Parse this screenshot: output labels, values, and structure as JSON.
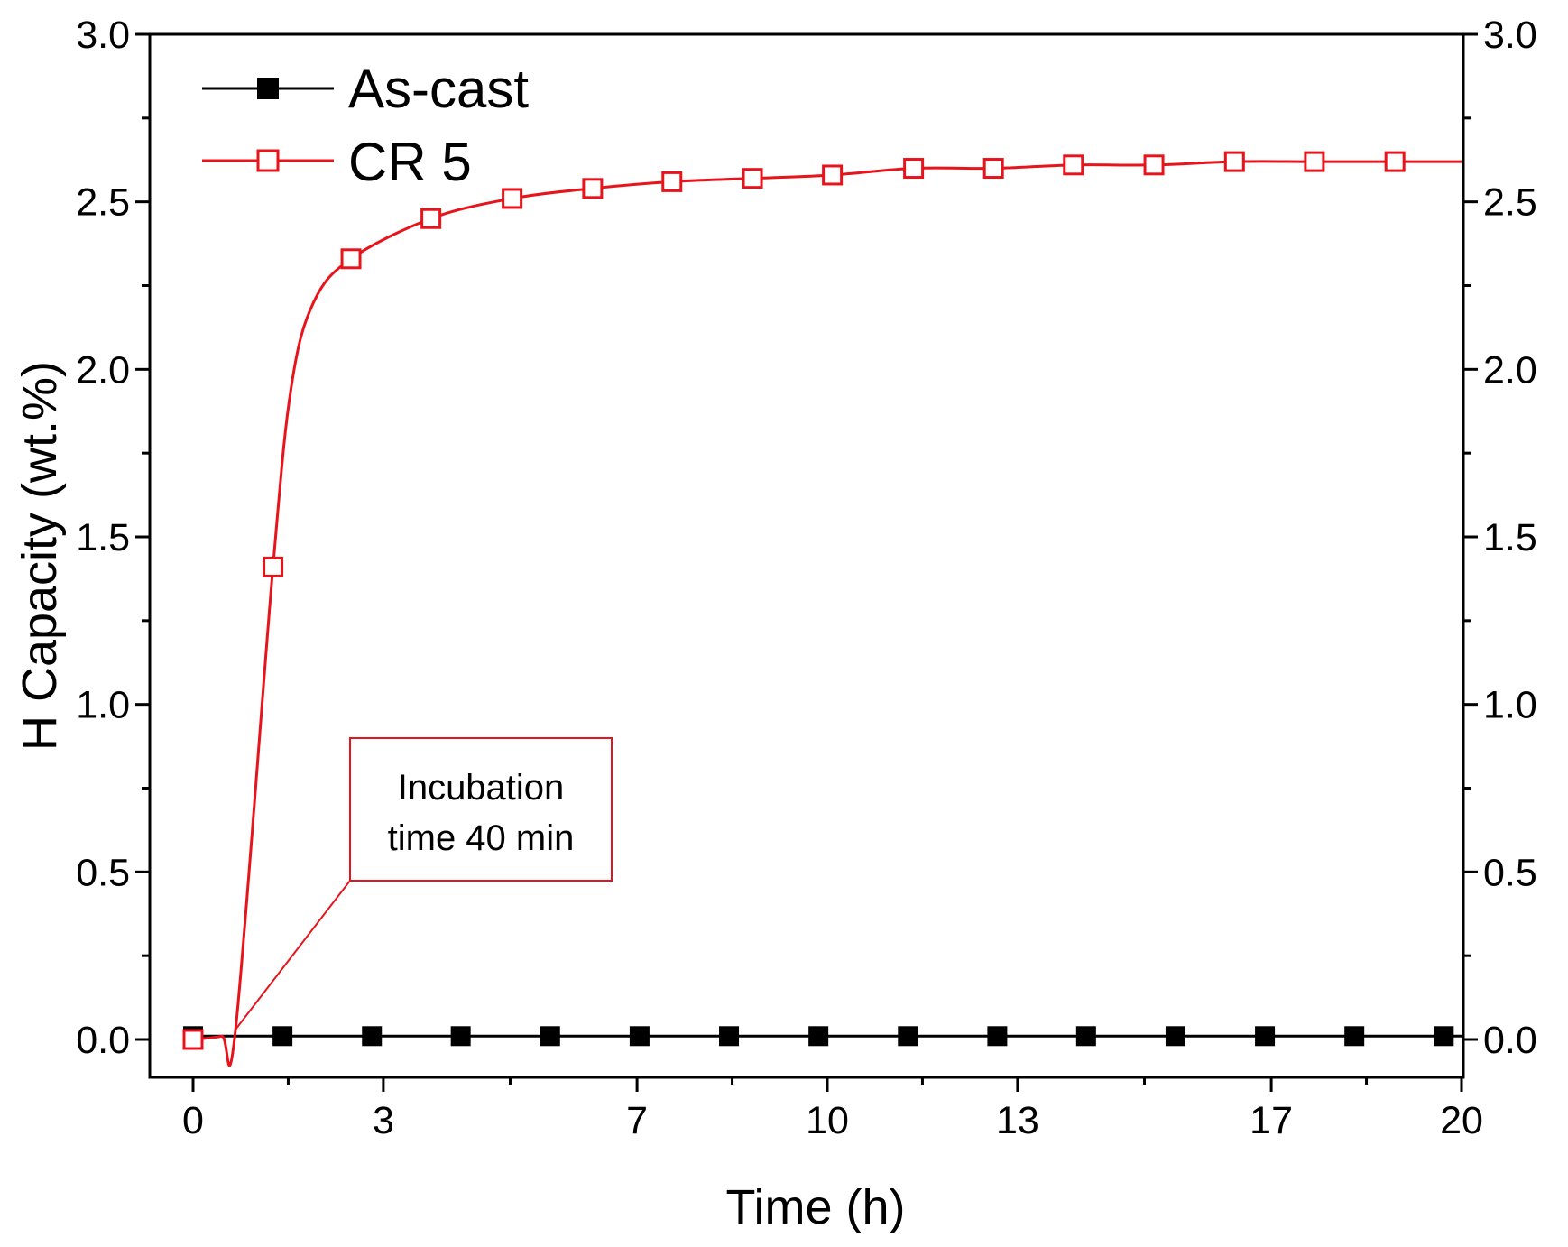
{
  "chart_data": {
    "type": "line",
    "title": "",
    "xlabel": "Time (h)",
    "ylabel": "H Capacity (wt.%)",
    "xlim": [
      0,
      20
    ],
    "ylim": [
      0,
      3.0
    ],
    "x_ticks": [
      0,
      3,
      7,
      10,
      13,
      17,
      20
    ],
    "x_tick_labels": [
      "0",
      "3",
      "7",
      "10",
      "13",
      "17",
      "20"
    ],
    "y_ticks": [
      0,
      0.5,
      1.0,
      1.5,
      2.0,
      2.5,
      3.0
    ],
    "y_tick_labels": [
      "0.0",
      "0.5",
      "1.0",
      "1.5",
      "2.0",
      "2.5",
      "3.0"
    ],
    "legend_position": "top-left",
    "series": [
      {
        "name": "As-cast",
        "color": "#000000",
        "marker": "filled-square",
        "x": [
          0,
          1.41,
          2.82,
          4.22,
          5.63,
          7.04,
          8.45,
          9.86,
          11.27,
          12.68,
          14.08,
          15.49,
          16.9,
          18.31,
          19.72
        ],
        "y": [
          0.01,
          0.01,
          0.01,
          0.01,
          0.01,
          0.01,
          0.01,
          0.01,
          0.01,
          0.01,
          0.01,
          0.01,
          0.01,
          0.01,
          0.01
        ]
      },
      {
        "name": "CR 5",
        "color": "#e8141b",
        "marker": "open-square",
        "x": [
          0,
          1.26,
          2.49,
          3.75,
          5.03,
          6.3,
          7.55,
          8.82,
          10.08,
          11.36,
          12.62,
          13.88,
          15.15,
          16.42,
          17.68,
          18.95
        ],
        "y": [
          0.0,
          1.41,
          2.33,
          2.45,
          2.51,
          2.54,
          2.56,
          2.57,
          2.58,
          2.6,
          2.6,
          2.61,
          2.61,
          2.62,
          2.62,
          2.62
        ]
      }
    ],
    "annotations": [
      {
        "text_line1": "Incubation",
        "text_line2": "time 40 min",
        "target_x": 0.67,
        "target_y": 0.03
      }
    ]
  }
}
